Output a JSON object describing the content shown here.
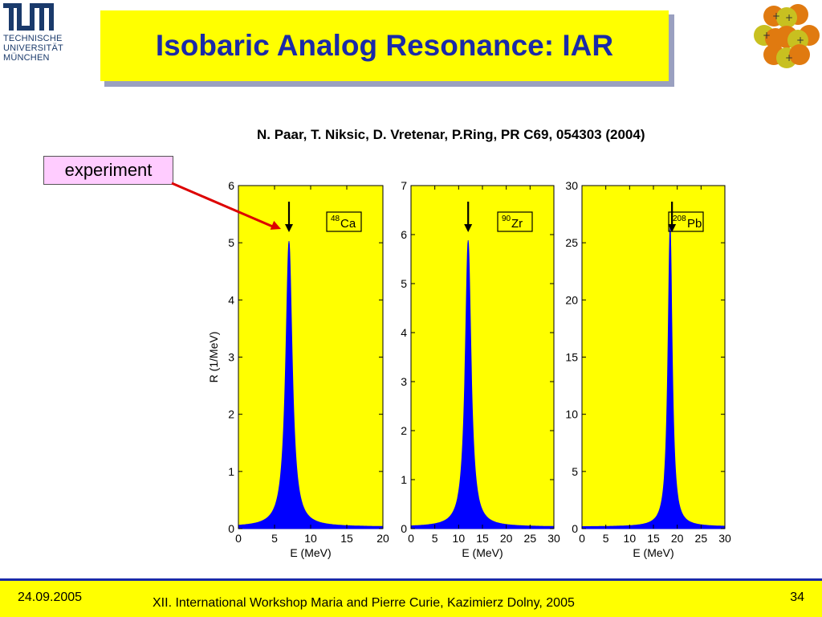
{
  "logo": {
    "line1": "TECHNISCHE",
    "line2": "UNIVERSITÄT",
    "line3": "MÜNCHEN"
  },
  "title": "Isobaric Analog Resonance: IAR",
  "citation": "N. Paar, T. Niksic, D. Vretenar, P.Ring, PR C69, 054303 (2004)",
  "experiment_label": "experiment",
  "footer": {
    "date": "24.09.2005",
    "conference": "XII. International Workshop Maria and Pierre Curie, Kazimierz Dolny, 2005",
    "page": "34"
  },
  "colors": {
    "plot_background": "#ffff00",
    "peak_fill": "#0000ff",
    "title_text": "#1a2aa8",
    "arrow_red": "#dd0000"
  },
  "chart_data": [
    {
      "type": "area",
      "nucleus_mass": "48",
      "nucleus_symbol": "Ca",
      "xlabel": "E (MeV)",
      "ylabel": "R (1/MeV)",
      "xlim": [
        0,
        20
      ],
      "ylim": [
        0,
        6
      ],
      "x_ticks": [
        0,
        5,
        10,
        15,
        20
      ],
      "y_ticks": [
        0,
        1,
        2,
        3,
        4,
        5,
        6
      ],
      "peak_energy": 7.0,
      "peak_height": 5.0,
      "peak_width": 0.55,
      "experiment_energy": 7.0
    },
    {
      "type": "area",
      "nucleus_mass": "90",
      "nucleus_symbol": "Zr",
      "xlabel": "E (MeV)",
      "ylabel": "",
      "xlim": [
        0,
        30
      ],
      "ylim": [
        0,
        7
      ],
      "x_ticks": [
        0,
        5,
        10,
        15,
        20,
        25,
        30
      ],
      "y_ticks": [
        0,
        1,
        2,
        3,
        4,
        5,
        6,
        7
      ],
      "peak_energy": 12.0,
      "peak_height": 5.85,
      "peak_width": 0.75,
      "experiment_energy": 12.0
    },
    {
      "type": "area",
      "nucleus_mass": "208",
      "nucleus_symbol": "Pb",
      "xlabel": "E (MeV)",
      "ylabel": "",
      "xlim": [
        0,
        30
      ],
      "ylim": [
        0,
        30
      ],
      "x_ticks": [
        0,
        5,
        10,
        15,
        20,
        25,
        30
      ],
      "y_ticks": [
        0,
        5,
        10,
        15,
        20,
        25,
        30
      ],
      "peak_energy": 18.5,
      "peak_height": 26.3,
      "peak_width": 0.55,
      "experiment_energy": 18.9
    }
  ]
}
